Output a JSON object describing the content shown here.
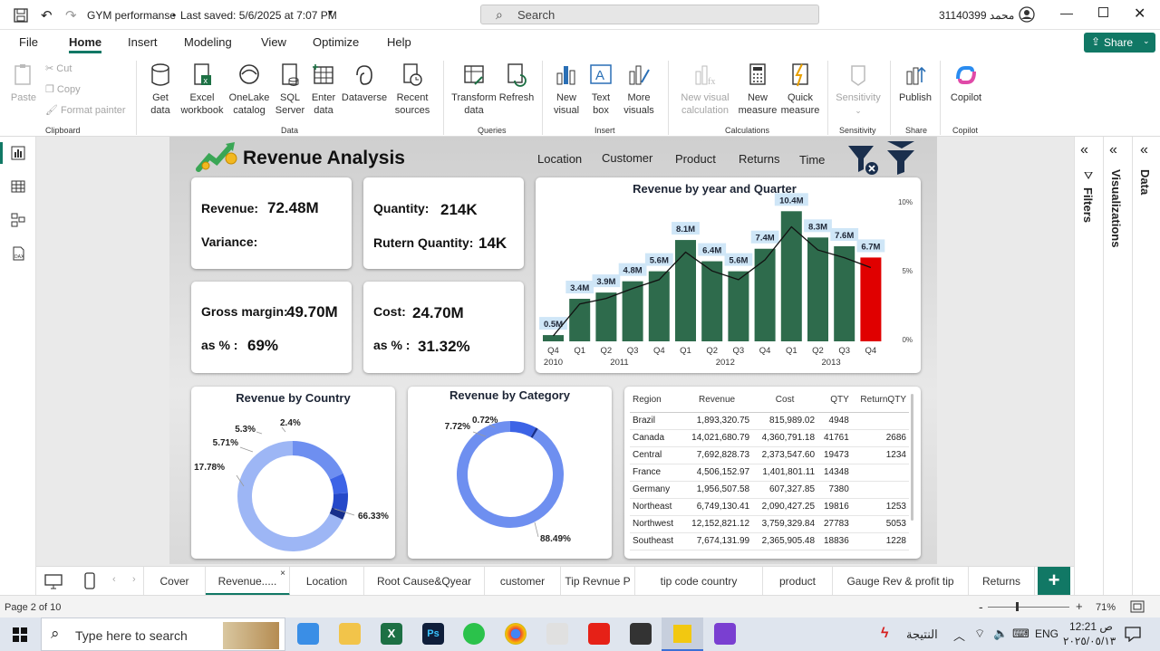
{
  "titlebar": {
    "doc_title": "GYM performanse",
    "saved": "Last saved: 5/6/2025 at 7:07 PM",
    "search_placeholder": "Search",
    "user": "محمد 31140399"
  },
  "ribbon_tabs": [
    "File",
    "Home",
    "Insert",
    "Modeling",
    "View",
    "Optimize",
    "Help"
  ],
  "share_label": "Share",
  "ribbon": {
    "paste": "Paste",
    "cut": "Cut",
    "copy": "Copy",
    "format_painter": "Format painter",
    "get_data": "Get data",
    "excel": "Excel workbook",
    "onelake": "OneLake catalog",
    "sql": "SQL Server",
    "enter_data": "Enter data",
    "dataverse": "Dataverse",
    "recent": "Recent sources",
    "transform": "Transform data",
    "refresh": "Refresh",
    "new_visual": "New visual",
    "text_box": "Text box",
    "more_visuals": "More visuals",
    "new_visual_calc": "New visual calculation",
    "new_measure": "New measure",
    "quick_measure": "Quick measure",
    "sensitivity": "Sensitivity",
    "publish": "Publish",
    "copilot": "Copilot",
    "groups": {
      "clipboard": "Clipboard",
      "data": "Data",
      "queries": "Queries",
      "insert": "Insert",
      "calculations": "Calculations",
      "sensitivity": "Sensitivity",
      "share": "Share",
      "copilot": "Copilot"
    }
  },
  "report": {
    "title": "Revenue Analysis",
    "nav": [
      "Location",
      "Customer",
      "Product",
      "Returns",
      "Time"
    ],
    "kpi": {
      "revenue_label": "Revenue:",
      "revenue_value": "72.48M",
      "variance_label": "Variance:",
      "quantity_label": "Quantity:",
      "quantity_value": "214K",
      "return_qty_label": "Rutern Quantity:",
      "return_qty_value": "14K",
      "gross_margin_label": "Gross margin:",
      "gross_margin_value": "49.70M",
      "gm_pct_label": "as % :",
      "gm_pct_value": "69%",
      "cost_label": "Cost:",
      "cost_value": "24.70M",
      "cost_pct_label": "as % :",
      "cost_pct_value": "31.32%"
    },
    "table": {
      "headers": [
        "Region",
        "Revenue",
        "Cost",
        "QTY",
        "ReturnQTY"
      ],
      "rows": [
        [
          "Brazil",
          "1,893,320.75",
          "815,989.02",
          "4948",
          ""
        ],
        [
          "Canada",
          "14,021,680.79",
          "4,360,791.18",
          "41761",
          "2686"
        ],
        [
          "Central",
          "7,692,828.73",
          "2,373,547.60",
          "19473",
          "1234"
        ],
        [
          "France",
          "4,506,152.97",
          "1,401,801.11",
          "14348",
          ""
        ],
        [
          "Germany",
          "1,956,507.58",
          "607,327.85",
          "7380",
          ""
        ],
        [
          "Northeast",
          "6,749,130.41",
          "2,090,427.25",
          "19816",
          "1253"
        ],
        [
          "Northwest",
          "12,152,821.12",
          "3,759,329.84",
          "27783",
          "5053"
        ],
        [
          "Southeast",
          "7,674,131.99",
          "2,365,905.48",
          "18836",
          "1228"
        ]
      ]
    }
  },
  "chart_data": [
    {
      "type": "bar",
      "title": "Revenue by year and Quarter",
      "categories": [
        "Q4",
        "Q1",
        "Q2",
        "Q3",
        "Q4",
        "Q1",
        "Q2",
        "Q3",
        "Q4",
        "Q1",
        "Q2",
        "Q3",
        "Q4"
      ],
      "years": [
        "2010",
        "2011",
        "2012",
        "2013"
      ],
      "values": [
        0.5,
        3.4,
        3.9,
        4.8,
        5.6,
        8.1,
        6.4,
        5.6,
        7.4,
        10.4,
        8.3,
        7.6,
        6.7
      ],
      "labels": [
        "0.5M",
        "3.4M",
        "3.9M",
        "4.8M",
        "5.6M",
        "8.1M",
        "6.4M",
        "5.6M",
        "7.4M",
        "10.4M",
        "8.3M",
        "7.6M",
        "6.7M"
      ],
      "y2_ticks": [
        "10%",
        "5%",
        "0%"
      ],
      "colors": {
        "bar": "#2e6b4c",
        "last": "#e00000",
        "line": "#111111"
      }
    },
    {
      "type": "pie",
      "title": "Revenue by Country",
      "values": [
        66.33,
        17.78,
        5.71,
        5.3,
        2.4
      ],
      "labels": [
        "66.33%",
        "17.78%",
        "5.71%",
        "5.3%",
        "2.4%"
      ],
      "colors": [
        "#9db6f5",
        "#6e8ff0",
        "#3c63e6",
        "#2448c9",
        "#172f8c"
      ]
    },
    {
      "type": "pie",
      "title": "Revenue by Category",
      "values": [
        88.49,
        7.72,
        0.72
      ],
      "labels": [
        "88.49%",
        "7.72%",
        "0.72%"
      ],
      "colors": [
        "#6e8ff0",
        "#3c63e6",
        "#172f8c"
      ]
    }
  ],
  "panes": {
    "filters": "Filters",
    "visualizations": "Visualizations",
    "data": "Data"
  },
  "page_tabs": [
    "Cover",
    "Revenue.....",
    "Location",
    "Root Cause&Qyear",
    "customer",
    "Tip Revnue P",
    "tip code country",
    "product",
    "Gauge Rev & profit tip",
    "Returns"
  ],
  "status": {
    "page": "Page 2 of 10",
    "zoom": "71%"
  },
  "taskbar": {
    "search": "Type here to search",
    "weather": "النتيجة",
    "lang": "ENG",
    "time": "12:21 ص",
    "date": "٢٠٢٥/٠٥/١٣"
  }
}
